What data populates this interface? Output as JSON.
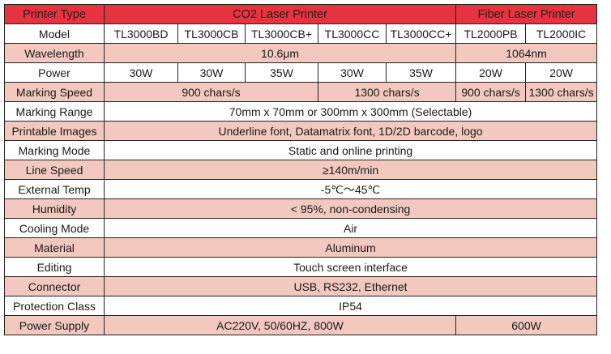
{
  "colors": {
    "header": "#e5343f",
    "stripe": "#f3c8be",
    "plain": "#ffffff"
  },
  "header": {
    "label": "Printer Type",
    "co2": "CO2 Laser Printer",
    "fiber": "Fiber Laser Printer"
  },
  "model": {
    "label": "Model",
    "values": [
      "TL3000BD",
      "TL3000CB",
      "TL3000CB+",
      "TL3000CC",
      "TL3000CC+",
      "TL2000PB",
      "TL2000IC"
    ]
  },
  "wavelength": {
    "label": "Wavelength",
    "co2": "10.6μm",
    "fiber": "1064nm"
  },
  "power": {
    "label": "Power",
    "values": [
      "30W",
      "30W",
      "35W",
      "30W",
      "35W",
      "20W",
      "20W"
    ]
  },
  "marking_speed": {
    "label": "Marking Speed",
    "values": [
      "900 chars/s",
      "1300 chars/s",
      "900 chars/s",
      "1300 chars/s"
    ]
  },
  "rows": [
    {
      "label": "Marking Range",
      "value": "70mm x 70mm or 300mm x 300mm (Selectable)"
    },
    {
      "label": "Printable Images",
      "value": "Underline font, Datamatrix font, 1D/2D barcode, logo"
    },
    {
      "label": "Marking Mode",
      "value": "Static and online printing"
    },
    {
      "label": "Line Speed",
      "value": "≥140m/min"
    },
    {
      "label": "External Temp",
      "value": "-5℃～45℃"
    },
    {
      "label": "Humidity",
      "value": "< 95%, non-condensing"
    },
    {
      "label": "Cooling Mode",
      "value": "Air"
    },
    {
      "label": "Material",
      "value": "Aluminum"
    },
    {
      "label": "Editing",
      "value": "Touch screen interface"
    },
    {
      "label": "Connector",
      "value": "USB, RS232, Ethernet"
    },
    {
      "label": "Protection Class",
      "value": "IP54"
    }
  ],
  "power_supply": {
    "label": "Power Supply",
    "co2": "AC220V, 50/60HZ, 800W",
    "fiber": "600W"
  }
}
